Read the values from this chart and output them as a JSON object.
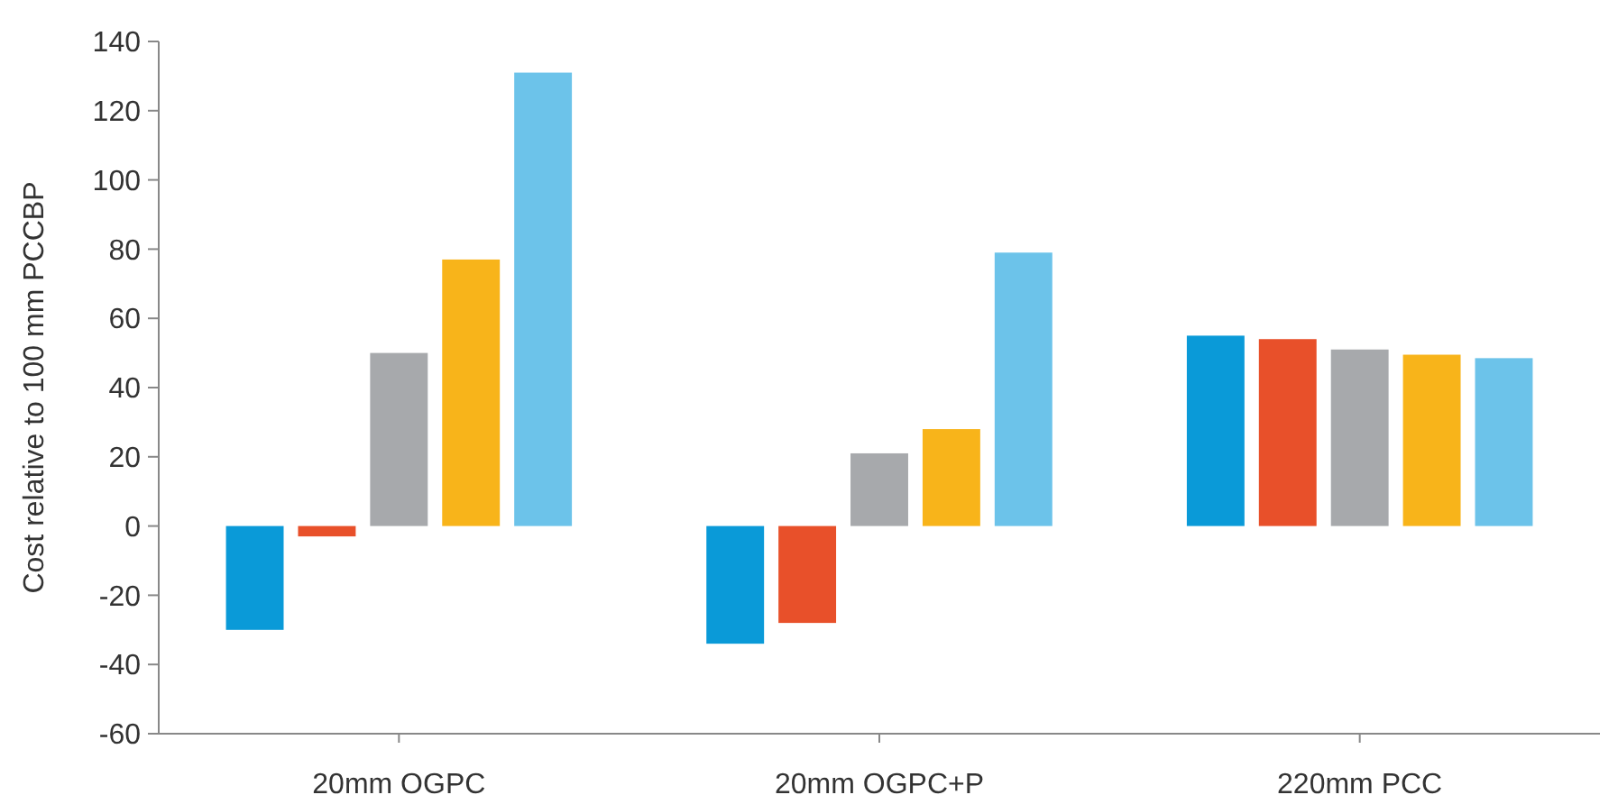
{
  "chart_data": {
    "type": "bar",
    "ylabel": "Cost relative to 100 mm PCCBP",
    "categories": [
      "20mm OGPC",
      "20mm OGPC+P",
      "220mm PCC"
    ],
    "series": [
      {
        "color": "#0a9ad8",
        "values": [
          -30,
          -34,
          55
        ]
      },
      {
        "color": "#e8502a",
        "values": [
          -3,
          -28,
          54
        ]
      },
      {
        "color": "#a7a9ac",
        "values": [
          50,
          21,
          51
        ]
      },
      {
        "color": "#f8b41a",
        "values": [
          77,
          28,
          49.5
        ]
      },
      {
        "color": "#6cc3ea",
        "values": [
          131,
          79,
          48.5
        ]
      }
    ],
    "ylim": [
      -60,
      140
    ],
    "yticks": [
      -60,
      -40,
      -20,
      0,
      20,
      40,
      60,
      80,
      100,
      120,
      140
    ],
    "grid": false
  }
}
